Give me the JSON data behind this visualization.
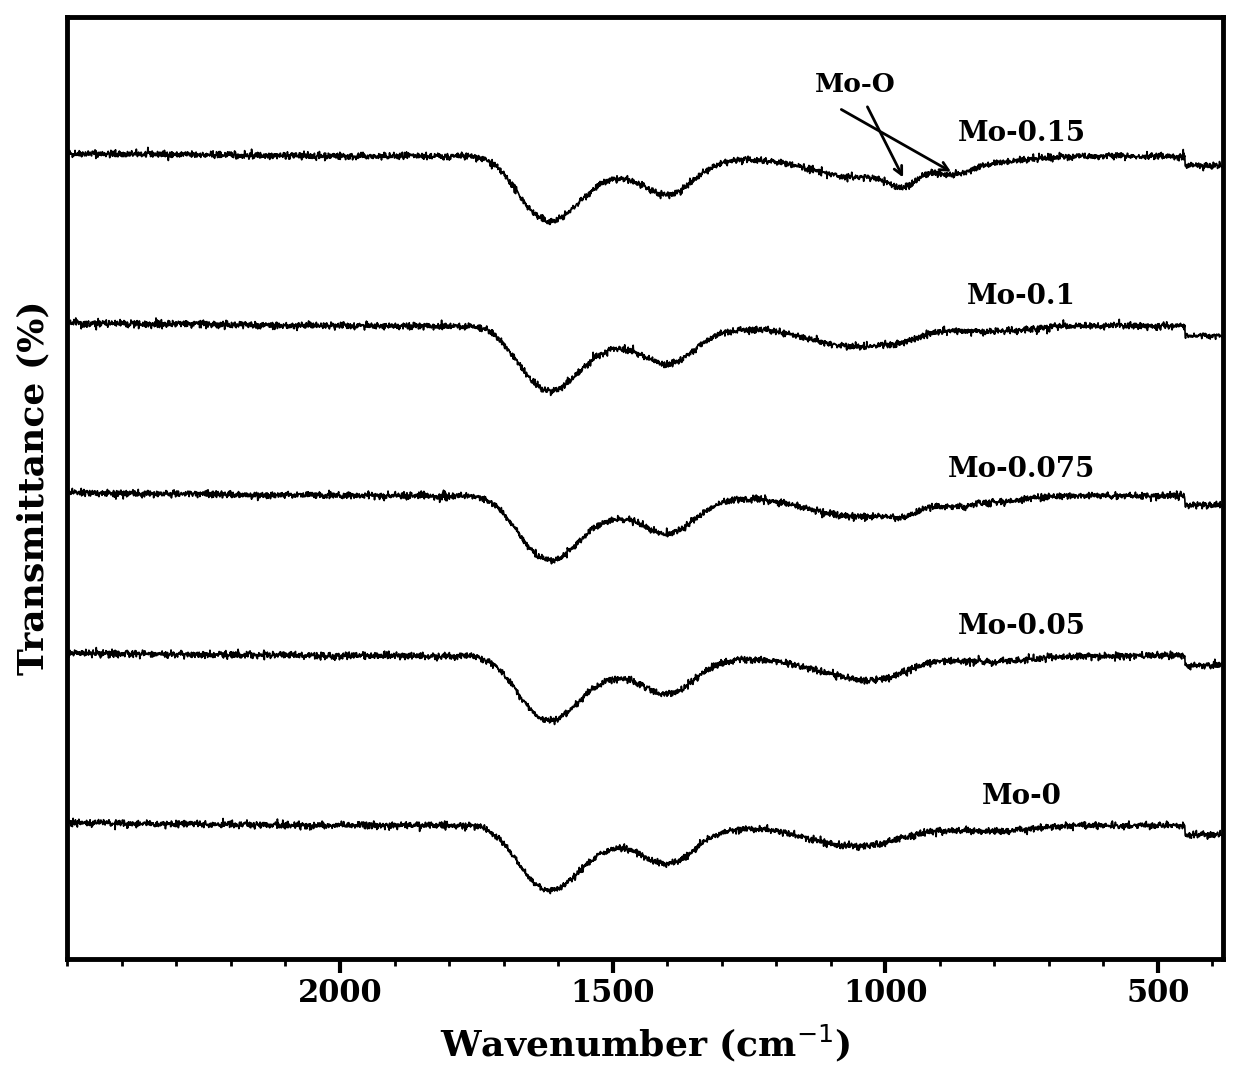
{
  "xlabel": "Wavenumber (cm$^{-1}$)",
  "ylabel": "Transmittance (%)",
  "xlim": [
    2500,
    380
  ],
  "ylim": [
    0,
    10
  ],
  "x_ticks": [
    2000,
    1500,
    1000,
    500
  ],
  "spectra_labels": [
    "Mo-0.15",
    "Mo-0.1",
    "Mo-0.075",
    "Mo-0.05",
    "Mo-0"
  ],
  "offsets": [
    7.8,
    6.0,
    4.2,
    2.5,
    0.7
  ],
  "background_color": "#ffffff",
  "line_color": "#000000",
  "label_fontsize": 26,
  "tick_fontsize": 22,
  "series_label_fontsize": 20,
  "annotation_fontsize": 19,
  "spine_linewidth": 3.5,
  "line_width": 1.2,
  "noise_amplitude": 0.018
}
